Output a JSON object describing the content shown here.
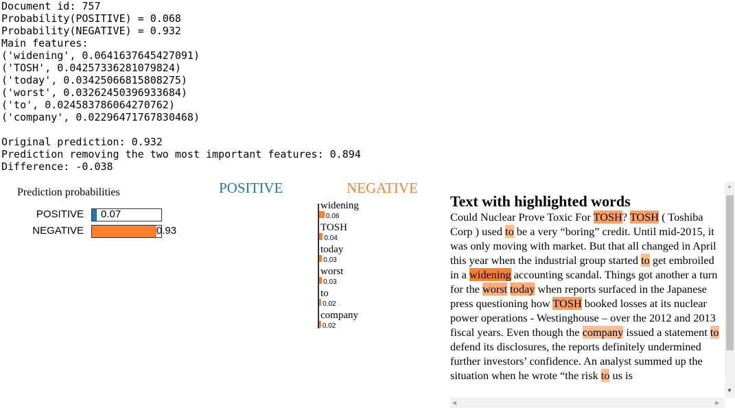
{
  "output_lines": [
    "Document id: 757",
    "Probability(POSITIVE) = 0.068",
    "Probability(NEGATIVE) = 0.932",
    "Main features:",
    "('widening', 0.0641637645427091)",
    "('TOSH', 0.04257336281079824)",
    "('today', 0.03425066815808275)",
    "('worst', 0.03262450396933684)",
    "('to', 0.024583786064270762)",
    "('company', 0.02296471767830468)",
    "",
    "Original prediction: 0.932",
    "Prediction removing the two most important features: 0.894",
    "Difference: -0.038"
  ],
  "prediction_probabilities": {
    "title": "Prediction probabilities",
    "items": [
      {
        "label": "POSITIVE",
        "value": 0.07,
        "value_text": "0.07",
        "color": "#1f77b4"
      },
      {
        "label": "NEGATIVE",
        "value": 0.93,
        "value_text": "0.93",
        "color": "#ff7f2a"
      }
    ]
  },
  "class_headers": {
    "positive": "POSITIVE",
    "negative": "NEGATIVE",
    "positive_color": "#1f77b4",
    "negative_color": "#ff7f2a"
  },
  "features": [
    {
      "word": "widening",
      "value": 0.064,
      "value_text": "0.06"
    },
    {
      "word": "TOSH",
      "value": 0.043,
      "value_text": "0.04"
    },
    {
      "word": "today",
      "value": 0.034,
      "value_text": "0.03"
    },
    {
      "word": "worst",
      "value": 0.033,
      "value_text": "0.03"
    },
    {
      "word": "to",
      "value": 0.025,
      "value_text": "0.02"
    },
    {
      "word": "company",
      "value": 0.023,
      "value_text": "0.02"
    }
  ],
  "text_panel": {
    "title": "Text with highlighted words",
    "segments": [
      {
        "t": "Could Nuclear Prove Toxic For "
      },
      {
        "t": "TOSH",
        "w": 0.66
      },
      {
        "t": "? "
      },
      {
        "t": "TOSH",
        "w": 0.66
      },
      {
        "t": " ( Toshiba Corp ) used "
      },
      {
        "t": "to",
        "w": 0.38
      },
      {
        "t": " be a very “boring” credit. Until mid-2015, it was only moving with market. But that all changed in April this year when the industrial group started "
      },
      {
        "t": "to",
        "w": 0.38
      },
      {
        "t": " get embroiled in a "
      },
      {
        "t": "widening",
        "w": 1.0
      },
      {
        "t": " accounting scandal. Things got another a turn for the "
      },
      {
        "t": "worst",
        "w": 0.51
      },
      {
        "t": " "
      },
      {
        "t": "today",
        "w": 0.53
      },
      {
        "t": " when reports surfaced in the Japanese press questioning how "
      },
      {
        "t": "TOSH",
        "w": 0.66
      },
      {
        "t": " booked losses at its nuclear power operations - Westinghouse – over the 2012 and 2013 fiscal years. Even though the "
      },
      {
        "t": "company",
        "w": 0.36
      },
      {
        "t": " issued a statement "
      },
      {
        "t": "to",
        "w": 0.38
      },
      {
        "t": " defend its disclosures, the reports definitely undermined further investors’ confidence. An analyst summed up the situation when he wrote “the risk "
      },
      {
        "t": "to",
        "w": 0.38
      },
      {
        "t": " us is"
      }
    ]
  }
}
